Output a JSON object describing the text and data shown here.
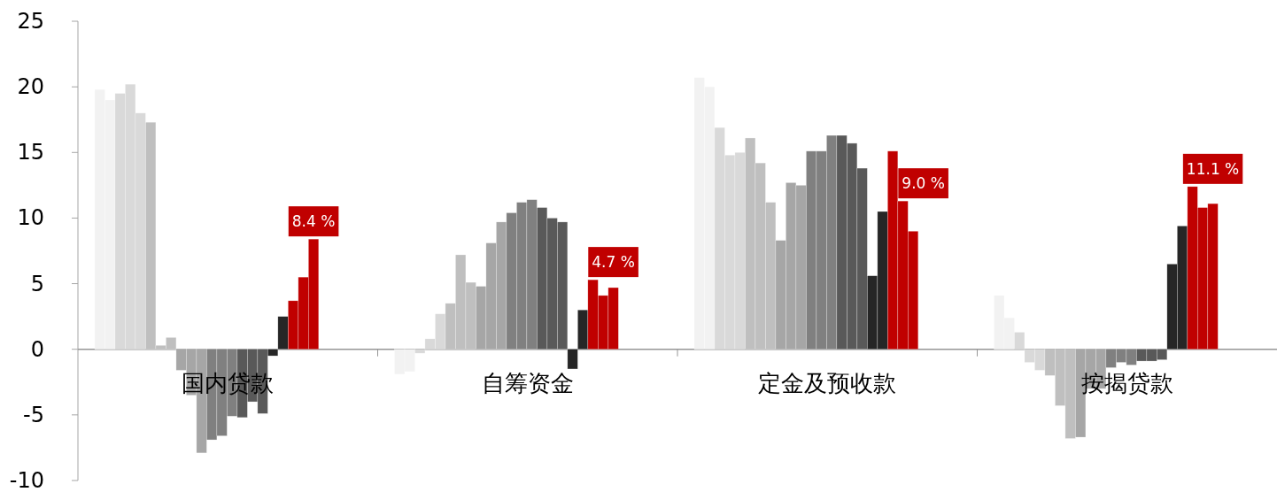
{
  "chart_data": {
    "type": "bar",
    "categories": [
      "国内贷款",
      "自筹资金",
      "定金及预收款",
      "按揭贷款"
    ],
    "ylim": [
      -10,
      25
    ],
    "yticks": [
      -10,
      -5,
      0,
      5,
      10,
      15,
      20,
      25
    ],
    "series": [
      {
        "color": "#f2f2f2",
        "values": [
          19.8,
          -1.9,
          20.7,
          4.1
        ]
      },
      {
        "color": "#f2f2f2",
        "values": [
          19.0,
          -1.7,
          20.0,
          2.4
        ]
      },
      {
        "color": "#d9d9d9",
        "values": [
          19.5,
          -0.3,
          16.9,
          1.3
        ]
      },
      {
        "color": "#d9d9d9",
        "values": [
          20.2,
          0.8,
          14.8,
          -1.0
        ]
      },
      {
        "color": "#d9d9d9",
        "values": [
          18.0,
          2.7,
          15.0,
          -1.6
        ]
      },
      {
        "color": "#bfbfbf",
        "values": [
          17.3,
          3.5,
          16.1,
          -2.0
        ]
      },
      {
        "color": "#bfbfbf",
        "values": [
          0.3,
          7.2,
          14.2,
          -4.3
        ]
      },
      {
        "color": "#bfbfbf",
        "values": [
          0.9,
          5.1,
          11.2,
          -6.8
        ]
      },
      {
        "color": "#a6a6a6",
        "values": [
          -1.6,
          4.8,
          8.3,
          -6.7
        ]
      },
      {
        "color": "#a6a6a6",
        "values": [
          -3.5,
          8.1,
          12.7,
          -3.0
        ]
      },
      {
        "color": "#a6a6a6",
        "values": [
          -7.9,
          9.7,
          12.5,
          -3.0
        ]
      },
      {
        "color": "#808080",
        "values": [
          -6.9,
          10.4,
          15.1,
          -1.4
        ]
      },
      {
        "color": "#808080",
        "values": [
          -6.6,
          11.2,
          15.1,
          -1.0
        ]
      },
      {
        "color": "#808080",
        "values": [
          -5.1,
          11.4,
          16.3,
          -1.2
        ]
      },
      {
        "color": "#595959",
        "values": [
          -5.2,
          10.8,
          16.3,
          -0.9
        ]
      },
      {
        "color": "#595959",
        "values": [
          -4.0,
          10.0,
          15.7,
          -0.9
        ]
      },
      {
        "color": "#595959",
        "values": [
          -4.9,
          9.7,
          13.8,
          -0.8
        ]
      },
      {
        "color": "#262626",
        "values": [
          -0.5,
          -1.5,
          5.6,
          6.5
        ]
      },
      {
        "color": "#262626",
        "values": [
          2.5,
          3.0,
          10.5,
          9.4
        ]
      },
      {
        "color": "#c00000",
        "values": [
          3.7,
          5.3,
          15.1,
          12.4
        ]
      },
      {
        "color": "#c00000",
        "values": [
          5.5,
          4.1,
          11.3,
          10.8
        ]
      },
      {
        "color": "#c00000",
        "values": [
          8.4,
          4.7,
          9.0,
          11.1
        ],
        "value_labels": [
          "8.4 %",
          "4.7 %",
          "9.0 %",
          "11.1 %"
        ]
      }
    ]
  }
}
